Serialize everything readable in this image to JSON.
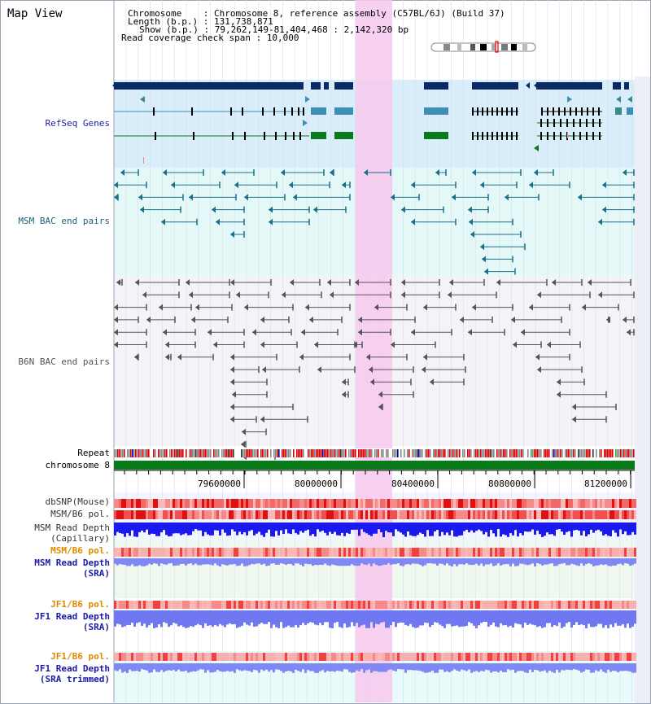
{
  "title": "Map View",
  "info": {
    "chromosome": "Chromosome    : Chromosome 8, reference assembly (C57BL/6J) (Build 37)",
    "length": "Length (b.p.) : 131,738,871",
    "show": "Show (b.p.) : 79,262,149-81,404,468 : 2,142,320 bp",
    "coverage": "Read coverage check span : 10,000"
  },
  "tracks": {
    "refseq": "RefSeq Genes",
    "msm_bac": "MSM BAC end pairs",
    "b6n_bac": "B6N BAC end pairs",
    "repeat": "Repeat",
    "chromosome": "chromosome 8",
    "dbsnp": "dbSNP(Mouse)",
    "msm_b6_pol": "MSM/B6 pol.",
    "msm_read_depth_cap_1": "MSM Read Depth",
    "msm_read_depth_cap_2": "(Capillary)",
    "msm_b6_pol_sra": "MSM/B6 pol.",
    "msm_read_depth_sra_1": "MSM Read Depth",
    "msm_read_depth_sra_2": "(SRA)",
    "jf1_b6_pol": "JF1/B6 pol.",
    "jf1_read_depth_1": "JF1 Read Depth",
    "jf1_read_depth_2": "(SRA)",
    "jf1_b6_pol_trim": "JF1/B6 pol.",
    "jf1_trim_1": "JF1 Read Depth",
    "jf1_trim_2": "(SRA trimmed)"
  },
  "axis": {
    "ticks": [
      "79600000",
      "80000000",
      "80400000",
      "80800000",
      "81200000"
    ]
  },
  "colors": {
    "gene_navy": "#0a2a66",
    "gene_blue": "#3d8fb8",
    "gene_green": "#0a7a1a",
    "highlight": "#f7c8ee",
    "refseq_bg": "#d9eefa",
    "msm_bg": "#e4f8f8",
    "b6n_bg": "#f3f3f6",
    "label_blue": "#1a1aa8",
    "label_teal": "#1a5f7a",
    "label_orange": "#e08a00",
    "depth_blue": "#1a1aee",
    "depth_light": "#7f88f5"
  }
}
